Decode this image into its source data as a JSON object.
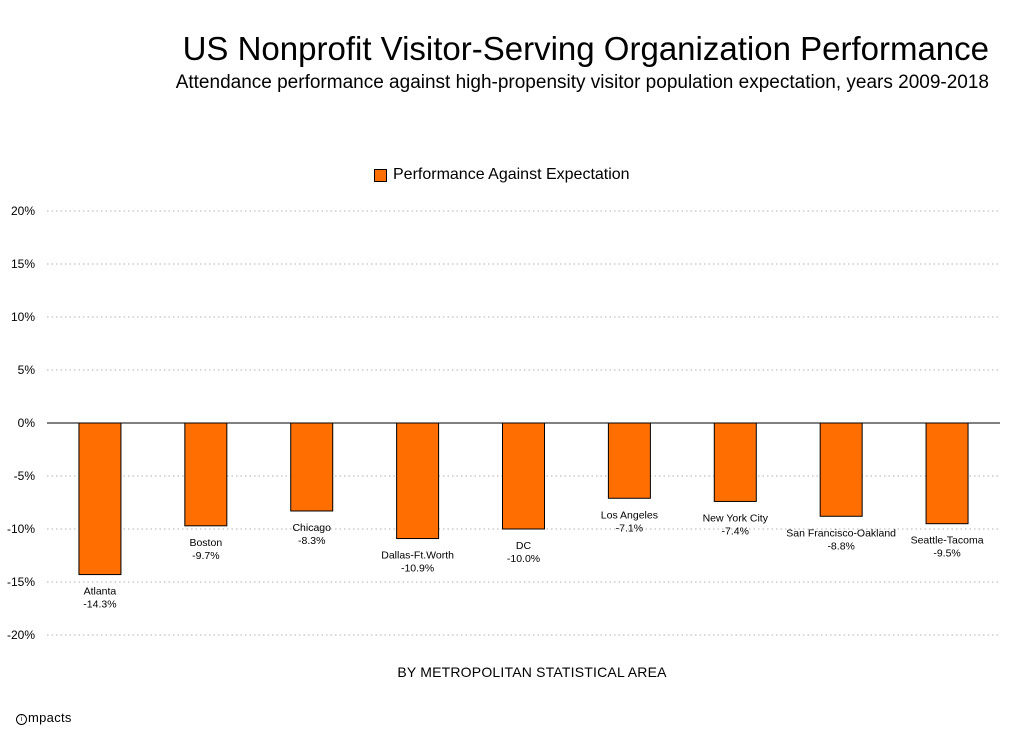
{
  "title": "US Nonprofit Visitor-Serving Organization Performance",
  "subtitle": "Attendance performance against high-propensity visitor population expectation, years 2009-2018",
  "brand": "mpacts",
  "colors": {
    "bar": "#ff6e00",
    "bar_edge": "#000000",
    "grid": "#b0b0b0"
  },
  "chart_data": {
    "type": "bar",
    "categories": [
      "Atlanta",
      "Boston",
      "Chicago",
      "Dallas-Ft.Worth",
      "DC",
      "Los Angeles",
      "New York City",
      "San Francisco-Oakland",
      "Seattle-Tacoma"
    ],
    "series": [
      {
        "name": "Performance Against Expectation",
        "values": [
          -14.3,
          -9.7,
          -8.3,
          -10.9,
          -10.0,
          -7.1,
          -7.4,
          -8.8,
          -9.5
        ],
        "labels": [
          "-14.3%",
          "-9.7%",
          "-8.3%",
          "-10.9%",
          "-10.0%",
          "-7.1%",
          "-7.4%",
          "-8.8%",
          "-9.5%"
        ]
      }
    ],
    "xlabel": "BY METROPOLITAN STATISTICAL AREA",
    "ylabel": "",
    "ylim": [
      -20,
      20
    ],
    "yticks": [
      20,
      15,
      10,
      5,
      0,
      -5,
      -10,
      -15,
      -20
    ],
    "ytick_labels": [
      "20%",
      "15%",
      "10%",
      "5%",
      "0%",
      "-5%",
      "-10%",
      "-15%",
      "-20%"
    ],
    "grid": true,
    "legend_position": "top-center"
  }
}
